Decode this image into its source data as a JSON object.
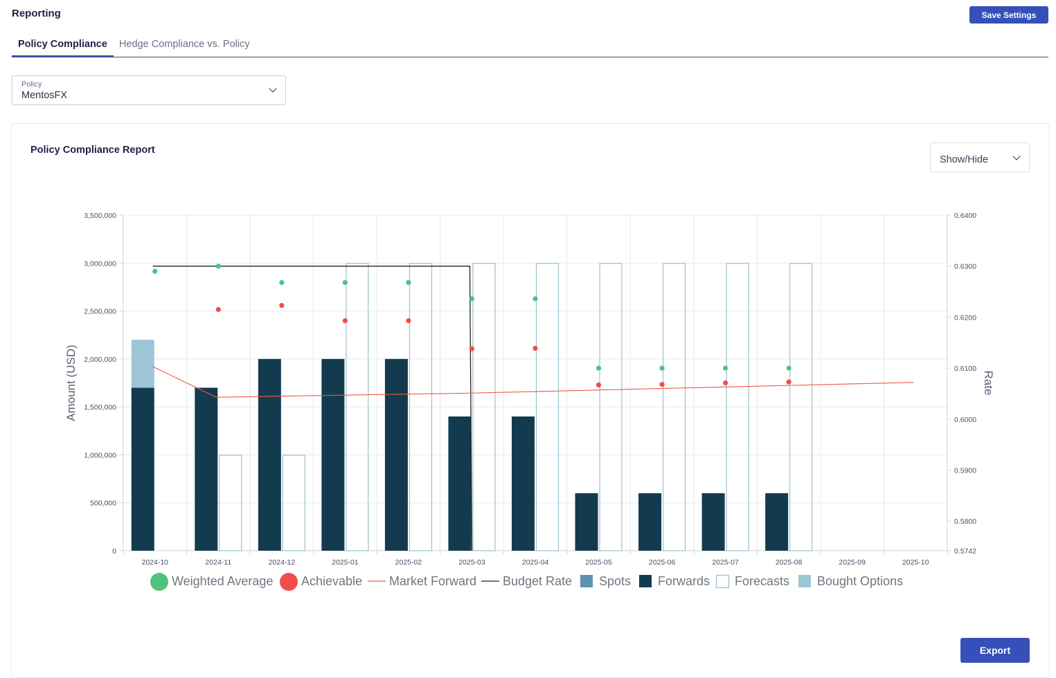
{
  "header": {
    "title": "Reporting",
    "save_label": "Save Settings"
  },
  "tabs": [
    {
      "label": "Policy Compliance",
      "active": true
    },
    {
      "label": "Hedge Compliance vs. Policy",
      "active": false
    }
  ],
  "policy_select": {
    "label": "Policy",
    "value": "MentosFX"
  },
  "report": {
    "title": "Policy Compliance Report",
    "show_hide_label": "Show/Hide",
    "export_label": "Export"
  },
  "colors": {
    "accent": "#3650b9",
    "forwards": "#133b4f",
    "spots": "#5b93ac",
    "bought_options": "#9cc6d6",
    "forecasts_border": "#9cc0cf",
    "weighted_average": "#4fc27c",
    "achievable": "#f24d4d",
    "market_forward": "#ef5a3c",
    "budget_rate": "#222222"
  },
  "chart_data": {
    "type": "bar",
    "categories": [
      "2024-10",
      "2024-11",
      "2024-12",
      "2025-01",
      "2025-02",
      "2025-03",
      "2025-04",
      "2025-05",
      "2025-06",
      "2025-07",
      "2025-08",
      "2025-09",
      "2025-10"
    ],
    "ylabel": "Amount (USD)",
    "y2label": "Rate",
    "ylim": [
      0,
      3500000
    ],
    "y2lim": [
      0.5742,
      0.64
    ],
    "yticks": [
      "3,500,000",
      "3,000,000",
      "2,500,000",
      "2,000,000",
      "1,500,000",
      "1,000,000",
      "500,000",
      "0"
    ],
    "yticks_values": [
      3500000,
      3000000,
      2500000,
      2000000,
      1500000,
      1000000,
      500000,
      0
    ],
    "y2ticks": [
      "0.6400",
      "0.6300",
      "0.6200",
      "0.6100",
      "0.6000",
      "0.5900",
      "0.5800",
      "0.5742"
    ],
    "y2ticks_values": [
      0.64,
      0.63,
      0.62,
      0.61,
      0.6,
      0.59,
      0.58,
      0.5742
    ],
    "grid": true,
    "legend_position": "bottom",
    "series": [
      {
        "name": "Forwards",
        "kind": "bar",
        "axis": "left",
        "values": [
          1700000,
          1700000,
          2000000,
          2000000,
          2000000,
          1400000,
          1400000,
          600000,
          600000,
          600000,
          600000,
          null,
          null
        ]
      },
      {
        "name": "Bought Options",
        "kind": "bar-stacked",
        "axis": "left",
        "values": [
          500000,
          null,
          null,
          null,
          null,
          null,
          null,
          null,
          null,
          null,
          null,
          null,
          null
        ]
      },
      {
        "name": "Forecasts",
        "kind": "bar-outline",
        "axis": "left",
        "values": [
          null,
          1000000,
          1000000,
          3000000,
          3000000,
          3000000,
          3000000,
          3000000,
          3000000,
          3000000,
          3000000,
          null,
          null
        ]
      },
      {
        "name": "Weighted Average",
        "kind": "point",
        "axis": "right",
        "values": [
          0.629,
          0.63,
          0.6268,
          0.6268,
          0.6268,
          0.6236,
          0.6236,
          0.61,
          0.61,
          0.61,
          0.61,
          null,
          null
        ]
      },
      {
        "name": "Achievable",
        "kind": "point",
        "axis": "right",
        "values": [
          null,
          0.6215,
          0.6223,
          0.6193,
          0.6193,
          0.6138,
          0.6139,
          0.6067,
          0.6068,
          0.6071,
          0.6073,
          null,
          null
        ]
      },
      {
        "name": "Market Forward",
        "kind": "line",
        "axis": "right",
        "values": [
          0.6103,
          0.6043,
          0.6045,
          0.6047,
          0.6049,
          0.6051,
          0.6054,
          0.6057,
          0.606,
          0.6063,
          0.6066,
          0.6069,
          0.6072
        ]
      },
      {
        "name": "Budget Rate",
        "kind": "line",
        "axis": "right",
        "values": [
          0.63,
          0.63,
          0.63,
          0.63,
          0.63,
          0.63,
          null,
          null,
          null,
          null,
          null,
          null,
          null
        ]
      }
    ],
    "legend": [
      "Weighted Average",
      "Achievable",
      "Market Forward",
      "Budget Rate",
      "Spots",
      "Forwards",
      "Forecasts",
      "Bought Options"
    ]
  }
}
